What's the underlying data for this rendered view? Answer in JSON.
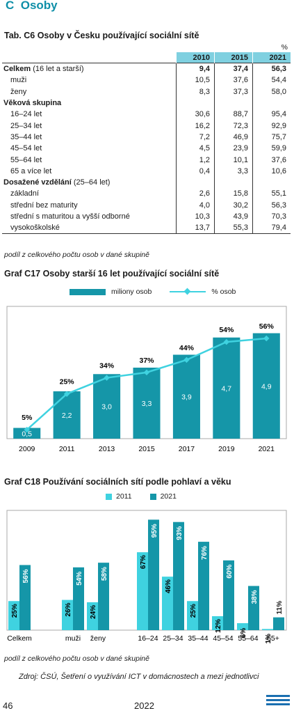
{
  "section": {
    "letter": "C",
    "title": "Osoby"
  },
  "table": {
    "title": "Tab. C6 Osoby v Česku používající sociální sítě",
    "unit": "%",
    "years": [
      "2010",
      "2015",
      "2021"
    ],
    "rows": [
      {
        "label": "Celkem",
        "sub": " (16 let a starší)",
        "type": "total",
        "values": [
          "9,4",
          "37,4",
          "56,3"
        ]
      },
      {
        "label": "muži",
        "type": "item",
        "values": [
          "10,5",
          "37,6",
          "54,4"
        ]
      },
      {
        "label": "ženy",
        "type": "item",
        "values": [
          "8,3",
          "37,3",
          "58,0"
        ]
      },
      {
        "label": "Věková skupina",
        "type": "group",
        "values": [
          "",
          "",
          ""
        ]
      },
      {
        "label": "16–24 let",
        "type": "item",
        "values": [
          "30,6",
          "88,7",
          "95,4"
        ]
      },
      {
        "label": "25–34 let",
        "type": "item",
        "values": [
          "16,2",
          "72,3",
          "92,9"
        ]
      },
      {
        "label": "35–44 let",
        "type": "item",
        "values": [
          "7,2",
          "46,9",
          "75,7"
        ]
      },
      {
        "label": "45–54 let",
        "type": "item",
        "values": [
          "4,5",
          "23,9",
          "59,9"
        ]
      },
      {
        "label": "55–64 let",
        "type": "item",
        "values": [
          "1,2",
          "10,1",
          "37,6"
        ]
      },
      {
        "label": "65 a více let",
        "type": "item",
        "values": [
          "0,4",
          "3,3",
          "10,6"
        ]
      },
      {
        "label": "Dosažené vzdělání",
        "sub": " (25–64 let)",
        "type": "group",
        "values": [
          "",
          "",
          ""
        ]
      },
      {
        "label": "základní",
        "type": "item",
        "values": [
          "2,6",
          "15,8",
          "55,1"
        ]
      },
      {
        "label": "střední bez maturity",
        "type": "item",
        "values": [
          "4,0",
          "30,2",
          "56,3"
        ]
      },
      {
        "label": "střední s maturitou a vyšší odborné",
        "type": "item",
        "values": [
          "10,3",
          "43,9",
          "70,3"
        ]
      },
      {
        "label": "vysokoškolské",
        "type": "item",
        "values": [
          "13,7",
          "55,3",
          "79,4"
        ]
      }
    ],
    "note": "podíl z celkového počtu osob v dané skupině"
  },
  "chart_data": [
    {
      "type": "bar",
      "title": "Graf C17 Osoby starší 16 let používající sociální sítě",
      "categories": [
        "2009",
        "2011",
        "2013",
        "2015",
        "2017",
        "2019",
        "2021"
      ],
      "series": [
        {
          "name": "miliony osob",
          "type": "bar",
          "values": [
            0.5,
            2.2,
            3.0,
            3.3,
            3.9,
            4.7,
            4.9
          ],
          "labels": [
            "0,5",
            "2,2",
            "3,0",
            "3,3",
            "3,9",
            "4,7",
            "4,9"
          ],
          "color": "#1596a8"
        },
        {
          "name": "% osob",
          "type": "line",
          "values": [
            5,
            25,
            34,
            37,
            44,
            54,
            56
          ],
          "labels": [
            "5%",
            "25%",
            "34%",
            "37%",
            "44%",
            "54%",
            "56%"
          ],
          "color": "#3fd2e0"
        }
      ],
      "legend": "top"
    },
    {
      "type": "bar",
      "title": "Graf C18 Používání sociálních sítí podle pohlaví a věku",
      "categories": [
        "Celkem",
        "muži",
        "ženy",
        "16–24",
        "25–34",
        "35–44",
        "45–54",
        "55–64",
        "65+"
      ],
      "series": [
        {
          "name": "2011",
          "values": [
            25,
            26,
            24,
            67,
            46,
            25,
            12,
            6,
            1
          ],
          "color": "#3fd2e0"
        },
        {
          "name": "2021",
          "values": [
            56,
            54,
            58,
            95,
            93,
            76,
            60,
            38,
            11
          ],
          "color": "#1596a8"
        }
      ],
      "legend": "top",
      "note": "podíl z celkového počtu osob v dané skupině"
    }
  ],
  "footer": {
    "source": "Zdroj: ČSÚ, Šetření o využívání ICT v domácnostech a mezi jednotlivci",
    "page": "46",
    "year": "2022"
  }
}
